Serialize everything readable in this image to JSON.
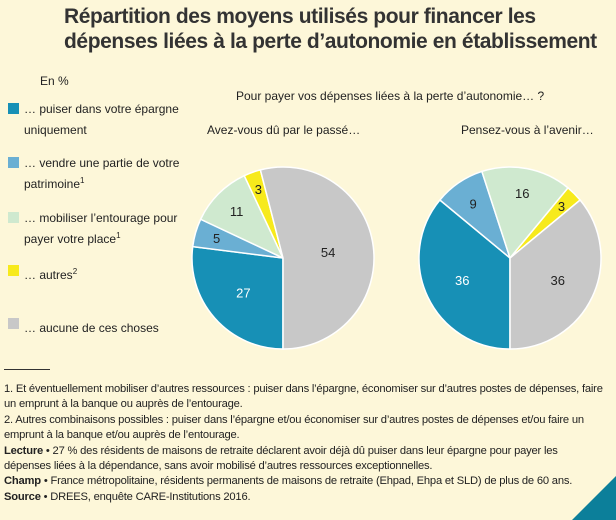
{
  "title": "Répartition des moyens utilisés pour financer les dépenses liées à la perte d’autonomie en établissement",
  "unit_label": "En %",
  "legend": [
    {
      "text": "… puiser dans votre épargne uniquement",
      "sup": "",
      "color": "#1790b6"
    },
    {
      "text": "… vendre une partie de votre patrimoine",
      "sup": "1",
      "color": "#6aafd3"
    },
    {
      "text": "… mobiliser l’entourage pour payer votre place",
      "sup": "1",
      "color": "#cfe9cf"
    },
    {
      "text": "… autres",
      "sup": "2",
      "color": "#f7ea1c"
    },
    {
      "text": "… aucune de ces choses",
      "sup": "",
      "color": "#c8c8c8"
    }
  ],
  "question": "Pour payer vos dépenses liées à la perte d’autonomie… ?",
  "chart_data": [
    {
      "type": "pie",
      "title": "Avez-vous dû par le passé…",
      "labels": [
        "… puiser dans votre épargne uniquement",
        "… vendre une partie de votre patrimoine",
        "… mobiliser l’entourage pour payer votre place",
        "… autres",
        "… aucune de ces choses"
      ],
      "values": [
        27,
        5,
        11,
        3,
        54
      ],
      "colors": [
        "#1790b6",
        "#6aafd3",
        "#cfe9cf",
        "#f7ea1c",
        "#c8c8c8"
      ]
    },
    {
      "type": "pie",
      "title": "Pensez-vous à l’avenir…",
      "labels": [
        "… puiser dans votre épargne uniquement",
        "… vendre une partie de votre patrimoine",
        "… mobiliser l’entourage pour payer votre place",
        "… autres",
        "… aucune de ces choses"
      ],
      "values": [
        36,
        9,
        16,
        3,
        36
      ],
      "colors": [
        "#1790b6",
        "#6aafd3",
        "#cfe9cf",
        "#f7ea1c",
        "#c8c8c8"
      ]
    }
  ],
  "notes": {
    "n1": "1. Et éventuellement mobiliser d’autres ressources : puiser dans l’épargne, économiser sur d’autres postes de dépenses, faire un emprunt à la banque ou auprès de l’entourage.",
    "n2": "2. Autres combinaisons possibles : puiser dans l’épargne et/ou économiser sur d’autres postes de dépenses et/ou faire un emprunt à la banque et/ou auprès de l’entourage.",
    "lecture_label": "Lecture",
    "lecture": " • 27 % des résidents de maisons de retraite déclarent avoir déjà dû puiser dans leur épargne pour payer les dépenses liées à la dépendance, sans avoir mobilisé d’autres ressources exceptionnelles.",
    "champ_label": "Champ",
    "champ": " • France métropolitaine, résidents permanents de maisons de retraite (Ehpad, Ehpa et SLD) de plus de 60 ans.",
    "source_label": "Source",
    "source": " • DREES, enquête CARE-Institutions 2016."
  }
}
